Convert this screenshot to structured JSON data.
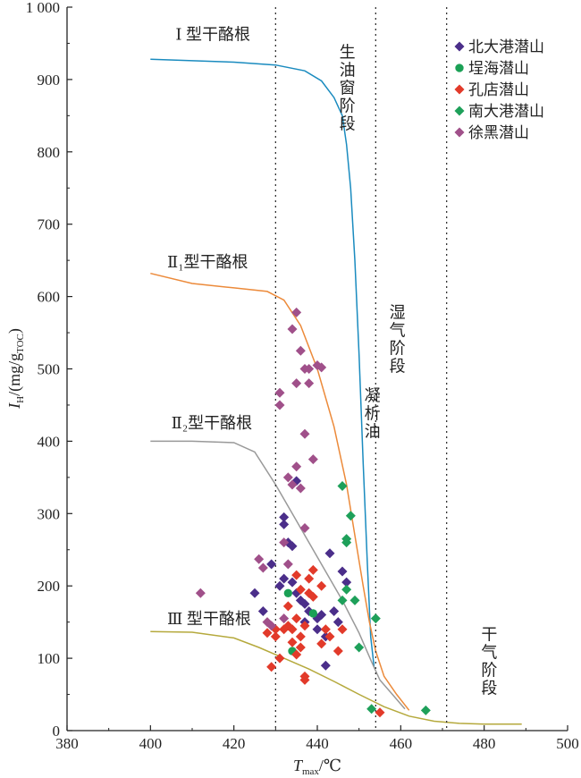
{
  "chart_data": {
    "type": "scatter",
    "title": "",
    "xlabel": {
      "main": "T",
      "sub": "max",
      "suffix": "/℃"
    },
    "ylabel": {
      "main": "I",
      "sub": "H",
      "unit_pre": "/(mg/g",
      "unit_sub": "TOC",
      "unit_post": ")"
    },
    "xlim": [
      380,
      500
    ],
    "ylim": [
      0,
      1000
    ],
    "x_ticks": [
      380,
      400,
      420,
      440,
      460,
      480,
      500
    ],
    "y_ticks": [
      0,
      100,
      200,
      300,
      400,
      500,
      600,
      700,
      800,
      900,
      1000
    ],
    "y_tick_labels": [
      "0",
      "100",
      "200",
      "300",
      "400",
      "500",
      "600",
      "700",
      "800",
      "900",
      "1 000"
    ],
    "grid": false,
    "legend_position": "top-right",
    "vertical_lines": [
      430,
      454,
      471
    ],
    "zone_labels": [
      {
        "text": "生油窗阶段",
        "x": 447,
        "y": 950
      },
      {
        "text": "湿气阶段",
        "x": 459,
        "y": 590
      },
      {
        "text": "凝析油",
        "x": 453,
        "y": 475
      },
      {
        "text": "干气阶段",
        "x": 481,
        "y": 145
      }
    ],
    "kerogen_curves": [
      {
        "name": "Ⅰ 型干酪根",
        "color": "#1a8bbf",
        "label_x": 406,
        "label_y": 955,
        "points": [
          [
            400,
            928
          ],
          [
            420,
            924
          ],
          [
            430,
            920
          ],
          [
            437,
            912
          ],
          [
            441,
            898
          ],
          [
            444,
            875
          ],
          [
            446,
            850
          ],
          [
            447,
            810
          ],
          [
            448,
            750
          ],
          [
            449,
            650
          ],
          [
            450,
            520
          ],
          [
            451,
            370
          ],
          [
            452,
            230
          ],
          [
            452.8,
            130
          ],
          [
            453.6,
            88
          ]
        ]
      },
      {
        "name": "Ⅱ₁型干酪根",
        "color": "#ec8a3a",
        "label_x": 404,
        "label_y": 640,
        "points": [
          [
            400,
            632
          ],
          [
            410,
            618
          ],
          [
            420,
            612
          ],
          [
            428,
            607
          ],
          [
            432,
            595
          ],
          [
            436,
            560
          ],
          [
            440,
            500
          ],
          [
            444,
            420
          ],
          [
            447,
            340
          ],
          [
            449,
            270
          ],
          [
            451,
            200
          ],
          [
            452.5,
            150
          ],
          [
            454,
            110
          ],
          [
            456,
            75
          ],
          [
            459,
            50
          ],
          [
            462,
            28
          ]
        ]
      },
      {
        "name": "Ⅱ₂型干酪根",
        "color": "#999999",
        "label_x": 405,
        "label_y": 418,
        "points": [
          [
            400,
            400
          ],
          [
            410,
            400
          ],
          [
            420,
            398
          ],
          [
            425,
            385
          ],
          [
            430,
            340
          ],
          [
            434,
            300
          ],
          [
            438,
            260
          ],
          [
            442,
            220
          ],
          [
            446,
            180
          ],
          [
            450,
            135
          ],
          [
            453,
            95
          ],
          [
            455,
            70
          ],
          [
            458,
            50
          ],
          [
            461,
            30
          ]
        ]
      },
      {
        "name": "Ⅲ 型干酪根",
        "color": "#b5a93c",
        "label_x": 404,
        "label_y": 147,
        "points": [
          [
            400,
            137
          ],
          [
            410,
            136
          ],
          [
            420,
            128
          ],
          [
            426,
            115
          ],
          [
            432,
            100
          ],
          [
            438,
            85
          ],
          [
            444,
            68
          ],
          [
            450,
            50
          ],
          [
            456,
            33
          ],
          [
            462,
            20
          ],
          [
            468,
            13
          ],
          [
            474,
            10
          ],
          [
            480,
            9
          ],
          [
            489,
            9
          ]
        ]
      }
    ],
    "series": [
      {
        "name": "北大港潜山",
        "color": "#4b2e8a",
        "marker": "diamond",
        "points": [
          [
            425,
            190
          ],
          [
            427,
            165
          ],
          [
            429,
            230
          ],
          [
            431,
            200
          ],
          [
            432,
            285
          ],
          [
            432,
            295
          ],
          [
            433,
            260
          ],
          [
            434,
            255
          ],
          [
            434,
            205
          ],
          [
            435,
            190
          ],
          [
            436,
            180
          ],
          [
            437,
            175
          ],
          [
            438,
            165
          ],
          [
            440,
            140
          ],
          [
            440,
            155
          ],
          [
            441,
            160
          ],
          [
            442,
            130
          ],
          [
            443,
            245
          ],
          [
            444,
            165
          ],
          [
            445,
            150
          ],
          [
            446,
            220
          ],
          [
            447,
            205
          ],
          [
            442,
            90
          ],
          [
            437,
            150
          ],
          [
            435,
            345
          ],
          [
            432,
            210
          ]
        ]
      },
      {
        "name": "埕海潜山",
        "color": "#1aa055",
        "marker": "circle",
        "points": [
          [
            433,
            190
          ],
          [
            434,
            110
          ],
          [
            439,
            162
          ]
        ]
      },
      {
        "name": "孔店潜山",
        "color": "#e23a2a",
        "marker": "diamond",
        "points": [
          [
            428,
            135
          ],
          [
            429,
            88
          ],
          [
            430,
            130
          ],
          [
            431,
            100
          ],
          [
            432,
            140
          ],
          [
            433,
            145
          ],
          [
            434,
            122
          ],
          [
            434,
            140
          ],
          [
            435,
            155
          ],
          [
            435,
            105
          ],
          [
            436,
            115
          ],
          [
            436,
            130
          ],
          [
            437,
            70
          ],
          [
            437,
            75
          ],
          [
            437,
            145
          ],
          [
            438,
            210
          ],
          [
            438,
            190
          ],
          [
            439,
            185
          ],
          [
            439,
            222
          ],
          [
            436,
            195
          ],
          [
            441,
            200
          ],
          [
            441,
            120
          ],
          [
            442,
            140
          ],
          [
            443,
            130
          ],
          [
            445,
            110
          ],
          [
            446,
            140
          ],
          [
            455,
            25
          ],
          [
            430,
            140
          ],
          [
            433,
            172
          ],
          [
            435,
            215
          ]
        ]
      },
      {
        "name": "南大港潜山",
        "color": "#1ea05a",
        "marker": "diamond",
        "points": [
          [
            446,
            338
          ],
          [
            447,
            260
          ],
          [
            447,
            265
          ],
          [
            448,
            297
          ],
          [
            446,
            180
          ],
          [
            447,
            195
          ],
          [
            449,
            180
          ],
          [
            450,
            115
          ],
          [
            453,
            30
          ],
          [
            454,
            155
          ],
          [
            466,
            28
          ]
        ]
      },
      {
        "name": "徐黑潜山",
        "color": "#a0508a",
        "marker": "diamond",
        "points": [
          [
            412,
            190
          ],
          [
            426,
            237
          ],
          [
            427,
            225
          ],
          [
            428,
            150
          ],
          [
            429,
            145
          ],
          [
            431,
            467
          ],
          [
            431,
            450
          ],
          [
            432,
            260
          ],
          [
            433,
            350
          ],
          [
            434,
            555
          ],
          [
            434,
            340
          ],
          [
            435,
            578
          ],
          [
            435,
            480
          ],
          [
            435,
            365
          ],
          [
            436,
            525
          ],
          [
            436,
            335
          ],
          [
            437,
            500
          ],
          [
            437,
            410
          ],
          [
            437,
            280
          ],
          [
            438,
            480
          ],
          [
            438,
            500
          ],
          [
            439,
            375
          ],
          [
            440,
            505
          ],
          [
            441,
            502
          ],
          [
            432,
            155
          ],
          [
            433,
            230
          ]
        ]
      }
    ]
  }
}
